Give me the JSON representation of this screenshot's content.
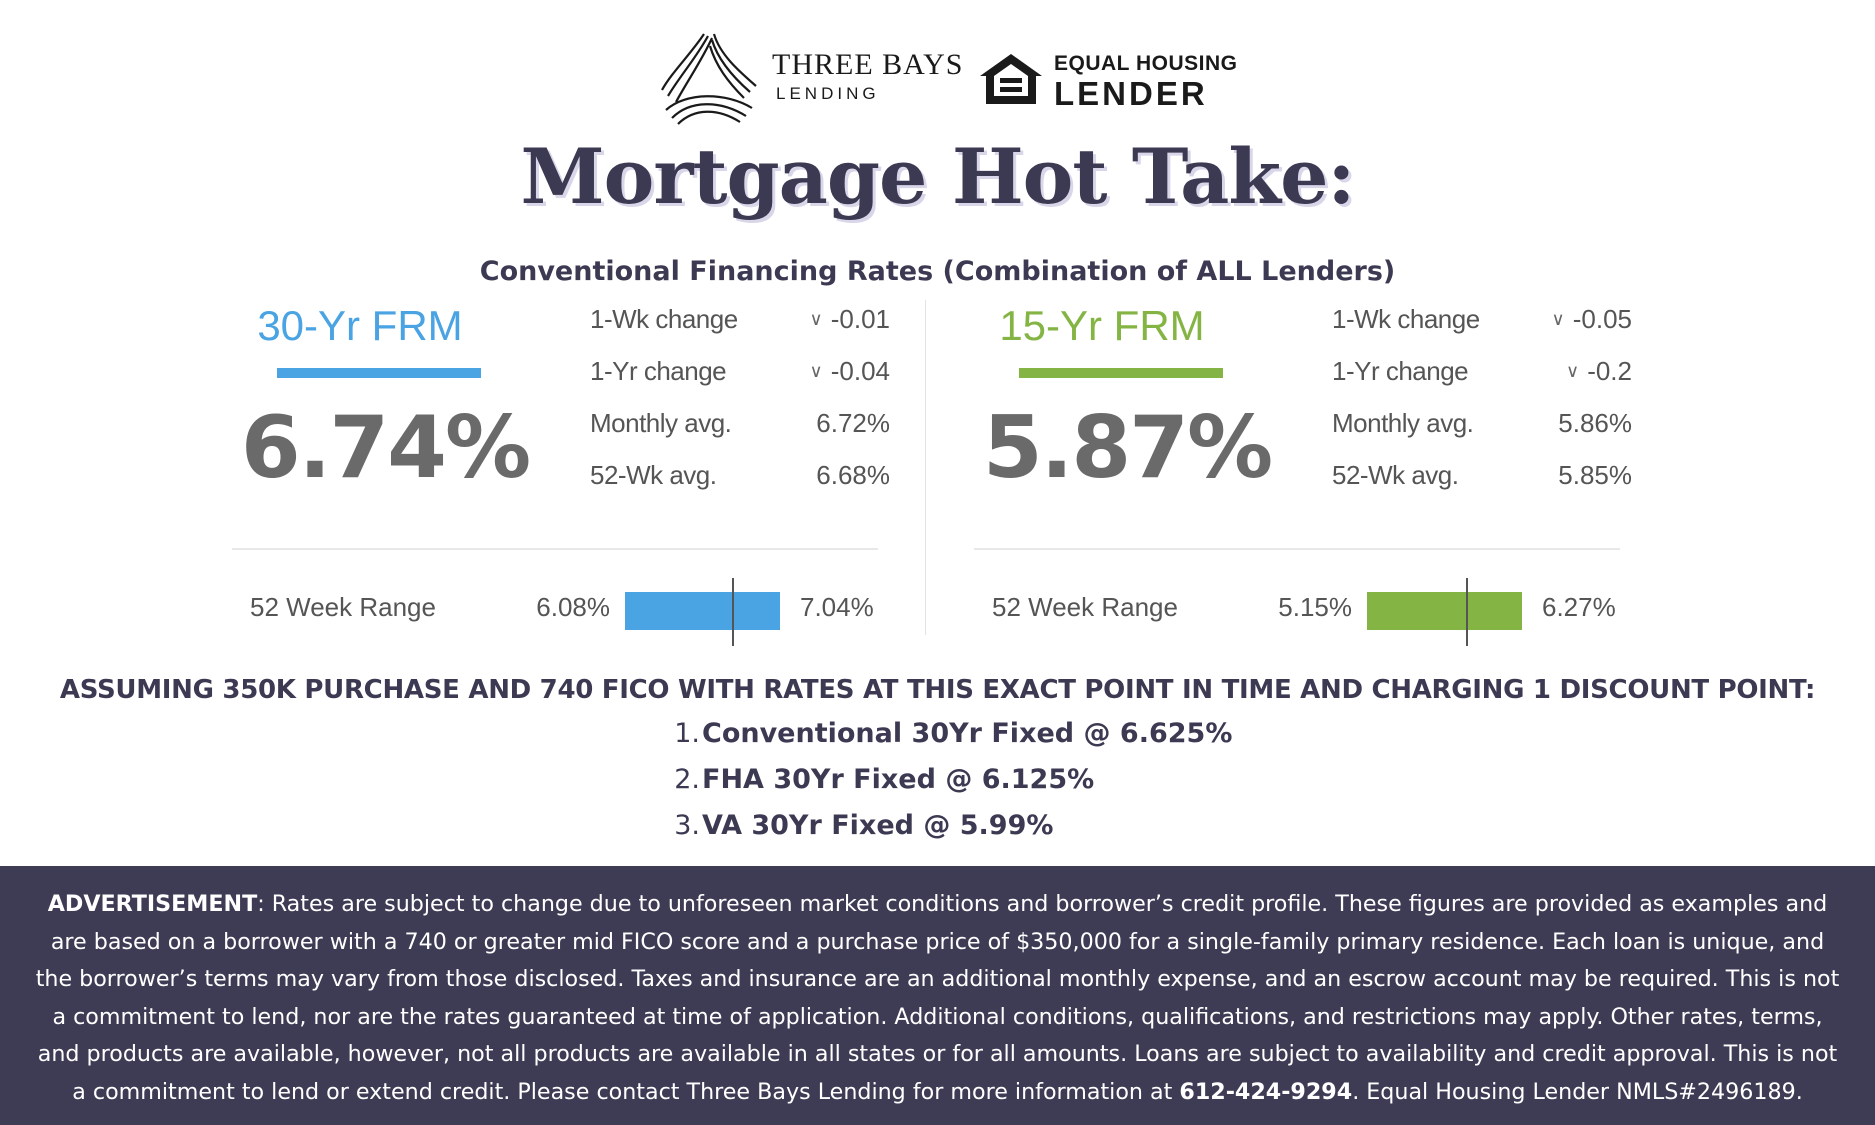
{
  "logos": {
    "three_bays_name": "THREE BAYS",
    "three_bays_sub": "LENDING",
    "equal_housing_line1": "EQUAL HOUSING",
    "equal_housing_line2": "LENDER"
  },
  "title": "Mortgage Hot Take:",
  "subtitle": "Conventional Financing Rates (Combination of ALL Lenders)",
  "rates": [
    {
      "label": "30-Yr FRM",
      "color": "#4aa3e3",
      "rate": "6.74%",
      "stats": [
        {
          "label": "1-Wk change",
          "value": "-0.01",
          "chevron": true
        },
        {
          "label": "1-Yr change",
          "value": "-0.04",
          "chevron": true
        },
        {
          "label": "Monthly avg.",
          "value": "6.72%",
          "chevron": false
        },
        {
          "label": "52-Wk avg.",
          "value": "6.68%",
          "chevron": false
        }
      ],
      "range_label": "52 Week Range",
      "range_low": "6.08%",
      "range_high": "7.04%",
      "range_position": 0.69
    },
    {
      "label": "15-Yr FRM",
      "color": "#84b444",
      "rate": "5.87%",
      "stats": [
        {
          "label": "1-Wk change",
          "value": "-0.05",
          "chevron": true
        },
        {
          "label": "1-Yr change",
          "value": "-0.2",
          "chevron": true
        },
        {
          "label": "Monthly avg.",
          "value": "5.86%",
          "chevron": false
        },
        {
          "label": "52-Wk avg.",
          "value": "5.85%",
          "chevron": false
        }
      ],
      "range_label": "52 Week Range",
      "range_low": "5.15%",
      "range_high": "6.27%",
      "range_position": 0.64
    }
  ],
  "assumption": "ASSUMING 350K PURCHASE AND 740 FICO WITH RATES AT THIS EXACT POINT IN TIME AND CHARGING 1 DISCOUNT POINT:",
  "scenarios": [
    {
      "num": "1.",
      "text": "Conventional 30Yr Fixed @ 6.625%"
    },
    {
      "num": "2.",
      "text": "FHA 30Yr Fixed @ 6.125%"
    },
    {
      "num": "3.",
      "text": "VA 30Yr Fixed @ 5.99%"
    }
  ],
  "disclaimer": {
    "heading": "ADVERTISEMENT",
    "body": ": Rates are subject to change due to unforeseen market conditions and borrower’s credit profile. These figures are provided as examples and are based on a borrower with a 740 or greater mid FICO score and a purchase price of $350,000 for a single-family primary residence. Each loan is unique, and the borrower’s terms may vary from those disclosed. Taxes and insurance are an additional monthly expense, and an escrow account may be required. This is not a commitment to lend, nor are the rates guaranteed at time of application. Additional conditions, qualifications, and restrictions may apply. Other rates, terms, and products are available, however, not all products are available in all states or for all amounts. Loans are subject to availability and credit approval. This is not a commitment to lend or extend credit. Please contact Three Bays Lending for more information at ",
    "phone": "612-424-9294",
    "tail": ". Equal Housing Lender NMLS#2496189."
  },
  "colors": {
    "navy": "#3b3a52",
    "footer_bg": "#3e3c55",
    "blue": "#4aa3e3",
    "green": "#84b444"
  }
}
